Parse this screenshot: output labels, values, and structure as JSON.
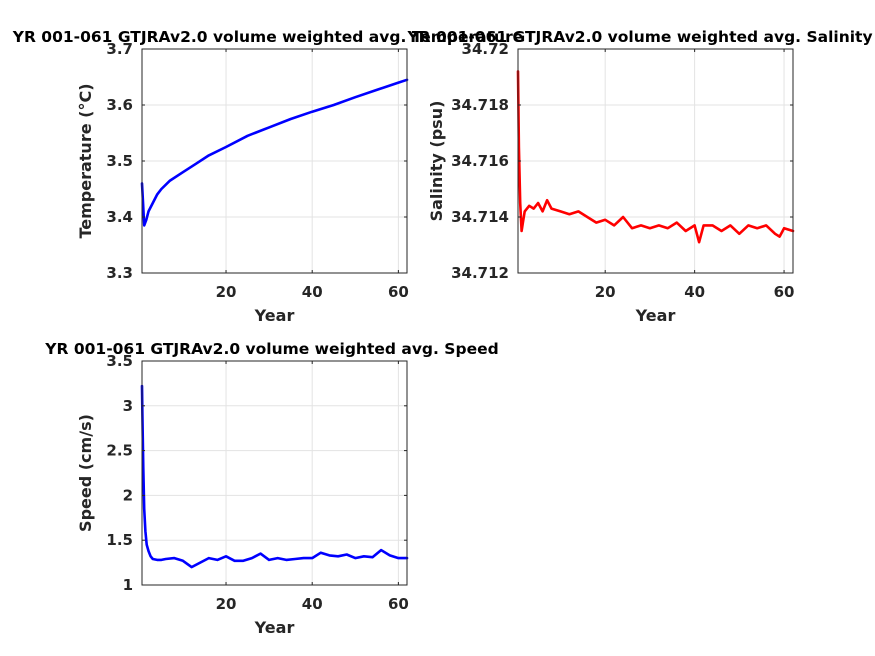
{
  "chart_data": [
    {
      "type": "line",
      "title": "YR 001-061 GTJRAv2.0 volume weighted avg. Temperature",
      "xlabel": "Year",
      "ylabel": "Temperature (°C)",
      "xlim": [
        0.5,
        62
      ],
      "ylim": [
        3.3,
        3.7
      ],
      "xticks": [
        20,
        40,
        60
      ],
      "yticks": [
        3.3,
        3.4,
        3.5,
        3.6,
        3.7
      ],
      "ytick_labels": [
        "3.3",
        "3.4",
        "3.5",
        "3.6",
        "3.7"
      ],
      "grid": true,
      "color": "#0000ff",
      "x": [
        0.5,
        0.7,
        1.0,
        1.5,
        2.0,
        3.0,
        4.0,
        5.0,
        7.0,
        10.0,
        13.0,
        16.0,
        20.0,
        25.0,
        30.0,
        35.0,
        40.0,
        45.0,
        50.0,
        55.0,
        60.0,
        62.0
      ],
      "y": [
        3.46,
        3.43,
        3.385,
        3.395,
        3.41,
        3.425,
        3.44,
        3.45,
        3.465,
        3.48,
        3.495,
        3.51,
        3.525,
        3.545,
        3.56,
        3.575,
        3.588,
        3.6,
        3.614,
        3.627,
        3.64,
        3.645
      ]
    },
    {
      "type": "line",
      "title": "YR 001-061 GTJRAv2.0 volume weighted avg. Salinity",
      "xlabel": "Year",
      "ylabel": "Salinity (psu)",
      "xlim": [
        0.5,
        62
      ],
      "ylim": [
        34.712,
        34.72
      ],
      "xticks": [
        20,
        40,
        60
      ],
      "yticks": [
        34.712,
        34.714,
        34.716,
        34.718,
        34.72
      ],
      "ytick_labels": [
        "34.712",
        "34.714",
        "34.716",
        "34.718",
        "34.72"
      ],
      "grid": true,
      "color": "#ff0000",
      "x": [
        0.5,
        0.7,
        1.0,
        1.3,
        1.6,
        2.0,
        3.0,
        4.0,
        5.0,
        6.0,
        7.0,
        8.0,
        10.0,
        12.0,
        14.0,
        16.0,
        18.0,
        20.0,
        22.0,
        24.0,
        26.0,
        28.0,
        30.0,
        32.0,
        34.0,
        36.0,
        38.0,
        40.0,
        41.0,
        42.0,
        44.0,
        46.0,
        48.0,
        50.0,
        52.0,
        54.0,
        56.0,
        58.0,
        59.0,
        60.0,
        62.0
      ],
      "y": [
        34.7192,
        34.7165,
        34.7145,
        34.7135,
        34.7138,
        34.7142,
        34.7144,
        34.7143,
        34.7145,
        34.7142,
        34.7146,
        34.7143,
        34.7142,
        34.7141,
        34.7142,
        34.714,
        34.7138,
        34.7139,
        34.7137,
        34.714,
        34.7136,
        34.7137,
        34.7136,
        34.7137,
        34.7136,
        34.7138,
        34.7135,
        34.7137,
        34.7131,
        34.7137,
        34.7137,
        34.7135,
        34.7137,
        34.7134,
        34.7137,
        34.7136,
        34.7137,
        34.7134,
        34.7133,
        34.7136,
        34.7135
      ]
    },
    {
      "type": "line",
      "title": "YR 001-061 GTJRAv2.0 volume weighted avg. Speed",
      "xlabel": "Year",
      "ylabel": "Speed (cm/s)",
      "xlim": [
        0.5,
        62
      ],
      "ylim": [
        1,
        3.5
      ],
      "xticks": [
        20,
        40,
        60
      ],
      "yticks": [
        1,
        1.5,
        2,
        2.5,
        3,
        3.5
      ],
      "ytick_labels": [
        "1",
        "1.5",
        "2",
        "2.5",
        "3",
        "3.5"
      ],
      "grid": true,
      "color": "#0000ff",
      "x": [
        0.5,
        0.6,
        0.8,
        1.0,
        1.3,
        1.6,
        2.0,
        2.5,
        3.0,
        4.0,
        5.0,
        6.0,
        8.0,
        10.0,
        12.0,
        14.0,
        16.0,
        18.0,
        20.0,
        22.0,
        24.0,
        26.0,
        28.0,
        30.0,
        32.0,
        34.0,
        36.0,
        38.0,
        40.0,
        42.0,
        44.0,
        46.0,
        48.0,
        50.0,
        52.0,
        54.0,
        56.0,
        58.0,
        60.0,
        62.0
      ],
      "y": [
        3.22,
        2.9,
        2.3,
        1.85,
        1.6,
        1.45,
        1.38,
        1.32,
        1.29,
        1.28,
        1.28,
        1.29,
        1.3,
        1.27,
        1.2,
        1.25,
        1.3,
        1.28,
        1.32,
        1.27,
        1.27,
        1.3,
        1.35,
        1.28,
        1.3,
        1.28,
        1.29,
        1.3,
        1.3,
        1.36,
        1.33,
        1.32,
        1.34,
        1.3,
        1.32,
        1.31,
        1.39,
        1.33,
        1.3,
        1.3
      ]
    }
  ]
}
